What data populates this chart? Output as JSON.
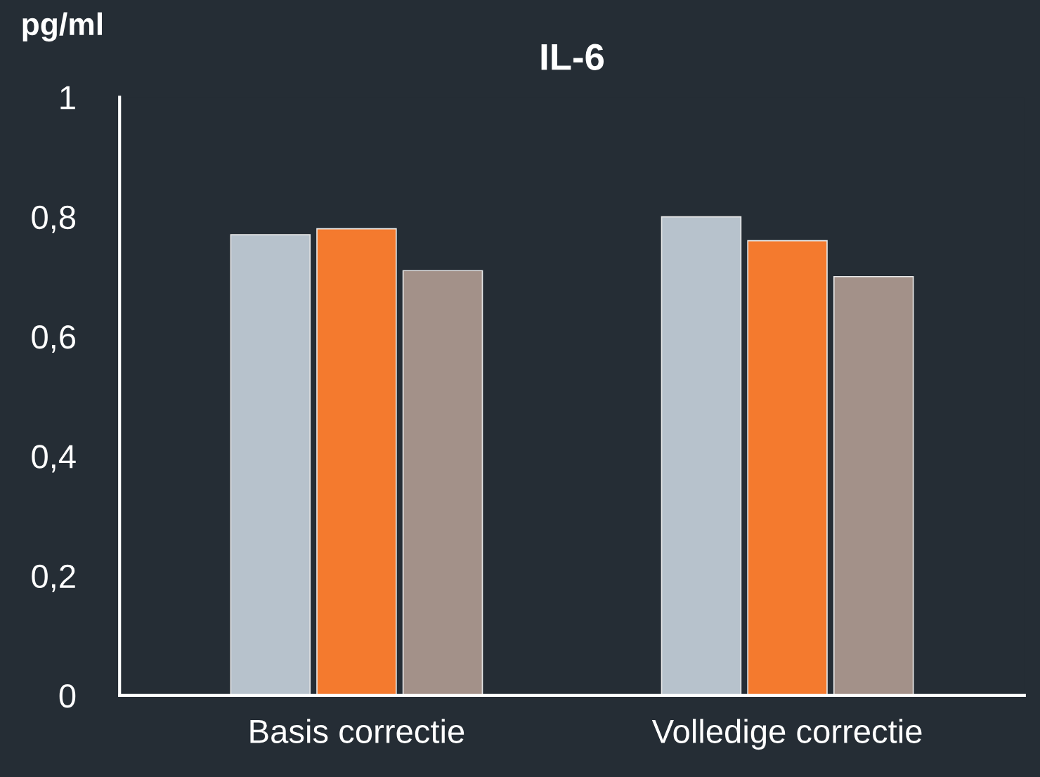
{
  "chart_data": {
    "type": "bar",
    "title": "IL-6",
    "ylabel": "pg/ml",
    "categories": [
      "Basis correctie",
      "Volledige correctie"
    ],
    "series": [
      {
        "color": "#b7c2cc",
        "values": [
          0.77,
          0.8
        ]
      },
      {
        "color": "#f47a2e",
        "values": [
          0.78,
          0.76
        ]
      },
      {
        "color": "#a39189",
        "values": [
          0.71,
          0.7
        ]
      }
    ],
    "ylim": [
      0,
      1
    ],
    "yticks": [
      0,
      {
        "value": 0.2,
        "label": "0,2"
      },
      {
        "value": 0.4,
        "label": "0,4"
      },
      {
        "value": 0.6,
        "label": "0,6"
      },
      {
        "value": 0.8,
        "label": "0,8"
      },
      1
    ],
    "grid": false
  }
}
